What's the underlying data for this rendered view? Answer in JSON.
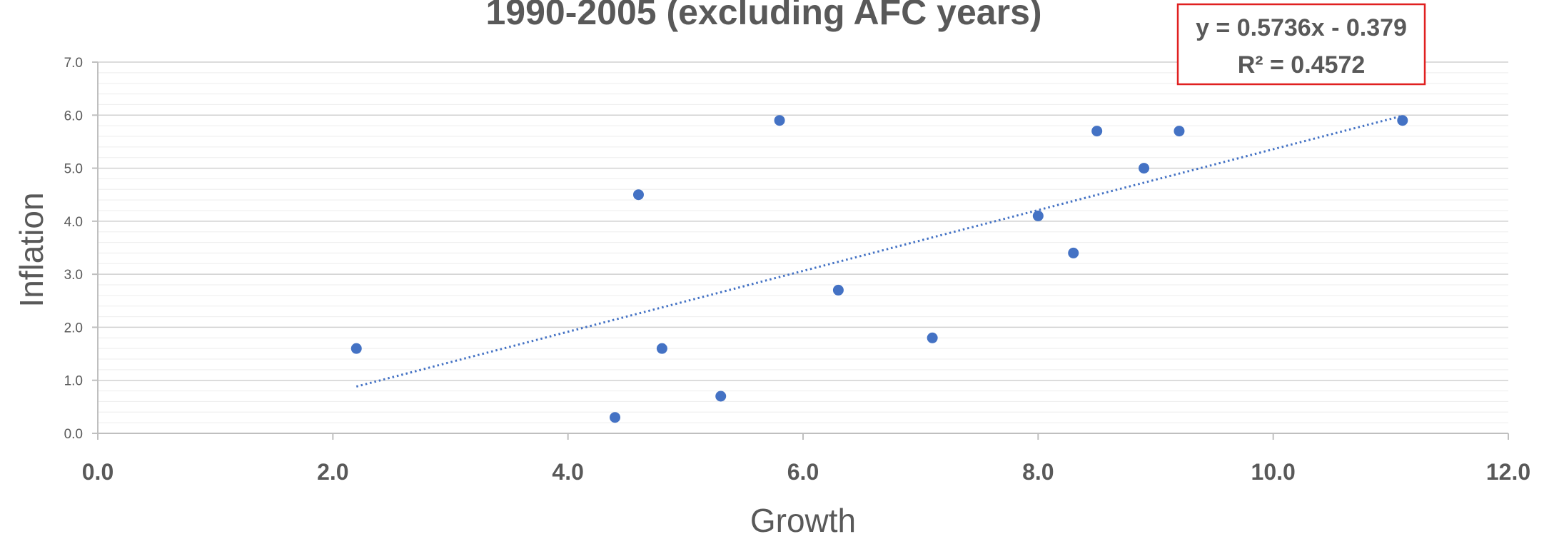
{
  "chart_data": {
    "type": "scatter",
    "title": "1990-2005 (excluding AFC years)",
    "xlabel": "Growth",
    "ylabel": "Inflation",
    "xlim": [
      0,
      12
    ],
    "ylim": [
      0,
      7
    ],
    "x_ticks": [
      "0.0",
      "2.0",
      "4.0",
      "6.0",
      "8.0",
      "10.0",
      "12.0"
    ],
    "y_ticks": [
      "0.0",
      "1.0",
      "2.0",
      "3.0",
      "4.0",
      "5.0",
      "6.0",
      "7.0"
    ],
    "grid": true,
    "series": [
      {
        "color": "#4472C4",
        "points": [
          {
            "x": 2.2,
            "y": 1.6
          },
          {
            "x": 4.4,
            "y": 0.3
          },
          {
            "x": 4.6,
            "y": 4.5
          },
          {
            "x": 4.8,
            "y": 1.6
          },
          {
            "x": 5.3,
            "y": 0.7
          },
          {
            "x": 5.8,
            "y": 5.9
          },
          {
            "x": 6.3,
            "y": 2.7
          },
          {
            "x": 7.1,
            "y": 1.8
          },
          {
            "x": 8.0,
            "y": 4.1
          },
          {
            "x": 8.3,
            "y": 3.4
          },
          {
            "x": 8.5,
            "y": 5.7
          },
          {
            "x": 8.9,
            "y": 5.0
          },
          {
            "x": 9.2,
            "y": 5.7
          },
          {
            "x": 11.1,
            "y": 5.9
          }
        ]
      }
    ],
    "trendline": {
      "type": "linear",
      "style": "dotted",
      "color": "#4472C4",
      "slope": 0.5736,
      "intercept": -0.379,
      "x_range": [
        2.2,
        11.1
      ],
      "equation": "y = 0.5736x - 0.379",
      "r_squared": "R² = 0.4572",
      "box_color": "#E02020"
    }
  }
}
